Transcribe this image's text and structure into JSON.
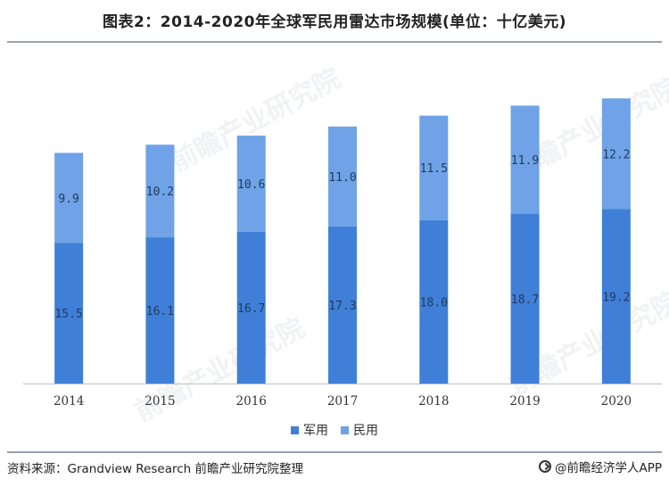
{
  "title": "图表2：2014-2020年全球军民用雷达市场规模(单位：十亿美元)",
  "source": "资料来源：Grandview Research 前瞻产业研究院整理",
  "credit": "@前瞻经济学人APP",
  "watermark_text": "前瞻产业研究院",
  "colors": {
    "military": "#3f7fd7",
    "civil": "#6fa2e6",
    "axis": "#bfbfbf",
    "label": "#1f3a5f"
  },
  "chart_data": {
    "type": "bar",
    "stacked": true,
    "categories": [
      "2014",
      "2015",
      "2016",
      "2017",
      "2018",
      "2019",
      "2020"
    ],
    "series": [
      {
        "name": "军用",
        "values": [
          15.5,
          16.1,
          16.7,
          17.3,
          18.0,
          18.7,
          19.2
        ],
        "color": "#3f7fd7"
      },
      {
        "name": "民用",
        "values": [
          9.9,
          10.2,
          10.6,
          11.0,
          11.5,
          11.9,
          12.2
        ],
        "color": "#6fa2e6"
      }
    ],
    "data_labels": {
      "军用": [
        "15.5",
        "16.1",
        "16.7",
        "17.3",
        "18.0",
        "18.7",
        "19.2"
      ],
      "民用": [
        "9.9",
        "10.2",
        "10.6",
        "11.0",
        "11.5",
        "11.9",
        "12.2"
      ]
    },
    "ylim": [
      0,
      33
    ],
    "legend_position": "bottom"
  }
}
